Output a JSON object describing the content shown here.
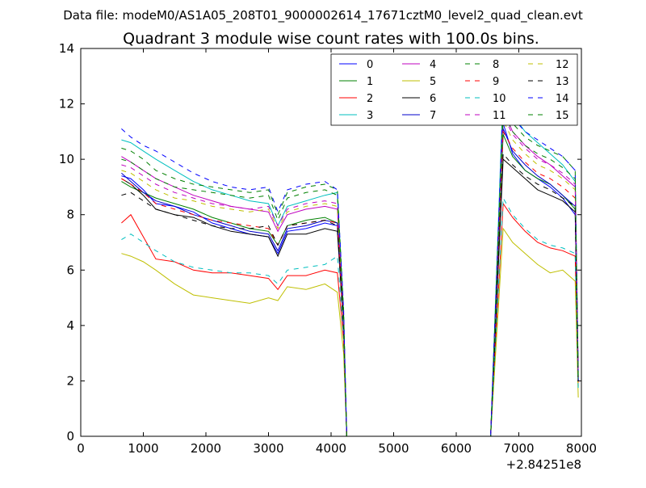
{
  "figure": {
    "suptitle": "Data file: modeM0/AS1A05_208T01_9000002614_17671cztM0_level2_quad_clean.evt"
  },
  "chart_data": {
    "type": "line",
    "title": "Quadrant 3 module wise count rates with 100.0s bins.",
    "xlabel": "",
    "ylabel": "",
    "xlim": [
      0,
      8000
    ],
    "ylim": [
      0,
      14
    ],
    "x_offset_label": "+2.84251e8",
    "x_ticks": [
      0,
      1000,
      2000,
      3000,
      4000,
      5000,
      6000,
      7000,
      8000
    ],
    "y_ticks": [
      0,
      2,
      4,
      6,
      8,
      10,
      12,
      14
    ],
    "grid": false,
    "legend_position": "top-right",
    "legend_columns": 4,
    "gap_interval": [
      4300,
      6550
    ],
    "series": [
      {
        "name": "0",
        "color": "#0000ff",
        "dashed": false,
        "x": [
          650,
          800,
          1000,
          1200,
          1500,
          1800,
          2100,
          2400,
          2700,
          3000,
          3150,
          3300,
          3600,
          3900,
          4100,
          4200,
          4250,
          6550,
          6750,
          6900,
          7100,
          7300,
          7500,
          7700,
          7900,
          7950
        ],
        "y": [
          9.4,
          9.3,
          8.9,
          8.4,
          8.3,
          8.1,
          7.7,
          7.5,
          7.3,
          7.2,
          6.6,
          7.4,
          7.5,
          7.7,
          7.6,
          4.0,
          0.0,
          0.0,
          11.3,
          10.2,
          9.6,
          9.3,
          9.0,
          8.6,
          8.0,
          2.0
        ]
      },
      {
        "name": "1",
        "color": "#008000",
        "dashed": false,
        "x": [
          650,
          800,
          1000,
          1200,
          1500,
          1800,
          2100,
          2400,
          2700,
          3000,
          3150,
          3300,
          3600,
          3900,
          4100,
          4200,
          4250,
          6550,
          6750,
          6900,
          7100,
          7300,
          7500,
          7700,
          7900,
          7950
        ],
        "y": [
          9.2,
          9.0,
          8.8,
          8.6,
          8.4,
          8.2,
          7.9,
          7.7,
          7.5,
          7.4,
          6.9,
          7.6,
          7.8,
          7.9,
          7.7,
          4.0,
          0.0,
          0.0,
          10.9,
          10.1,
          9.6,
          9.3,
          9.1,
          8.7,
          8.2,
          2.0
        ]
      },
      {
        "name": "2",
        "color": "#ff0000",
        "dashed": false,
        "x": [
          650,
          800,
          1000,
          1200,
          1500,
          1800,
          2100,
          2400,
          2700,
          3000,
          3150,
          3300,
          3600,
          3900,
          4100,
          4200,
          4250,
          6550,
          6750,
          6900,
          7100,
          7300,
          7500,
          7700,
          7900,
          7950
        ],
        "y": [
          7.7,
          8.0,
          7.2,
          6.4,
          6.3,
          6.0,
          5.9,
          5.9,
          5.8,
          5.7,
          5.3,
          5.8,
          5.8,
          6.0,
          5.9,
          3.5,
          0.0,
          0.0,
          8.4,
          7.9,
          7.4,
          7.0,
          6.8,
          6.7,
          6.5,
          1.8
        ]
      },
      {
        "name": "3",
        "color": "#00bfbf",
        "dashed": false,
        "x": [
          650,
          800,
          1000,
          1200,
          1500,
          1800,
          2100,
          2400,
          2700,
          3000,
          3150,
          3300,
          3600,
          3900,
          4100,
          4200,
          4250,
          6550,
          6750,
          6900,
          7100,
          7300,
          7500,
          7700,
          7900,
          7950
        ],
        "y": [
          10.7,
          10.6,
          10.3,
          10.0,
          9.6,
          9.2,
          8.9,
          8.7,
          8.5,
          8.4,
          7.6,
          8.3,
          8.5,
          8.7,
          8.8,
          4.5,
          0.0,
          0.0,
          12.5,
          11.6,
          11.0,
          10.6,
          10.2,
          9.8,
          9.2,
          2.2
        ]
      },
      {
        "name": "4",
        "color": "#bf00bf",
        "dashed": false,
        "x": [
          650,
          800,
          1000,
          1200,
          1500,
          1800,
          2100,
          2400,
          2700,
          3000,
          3150,
          3300,
          3600,
          3900,
          4100,
          4200,
          4250,
          6550,
          6750,
          6900,
          7100,
          7300,
          7500,
          7700,
          7900,
          7950
        ],
        "y": [
          10.1,
          9.9,
          9.6,
          9.3,
          9.0,
          8.7,
          8.5,
          8.3,
          8.2,
          8.1,
          7.4,
          8.0,
          8.2,
          8.3,
          8.2,
          4.2,
          0.0,
          0.0,
          11.8,
          11.0,
          10.5,
          10.1,
          9.8,
          9.4,
          9.0,
          2.1
        ]
      },
      {
        "name": "5",
        "color": "#bfbf00",
        "dashed": false,
        "x": [
          650,
          800,
          1000,
          1200,
          1500,
          1800,
          2100,
          2400,
          2700,
          3000,
          3150,
          3300,
          3600,
          3900,
          4100,
          4200,
          4250,
          6550,
          6750,
          6900,
          7100,
          7300,
          7500,
          7700,
          7900,
          7950
        ],
        "y": [
          6.6,
          6.5,
          6.3,
          6.0,
          5.5,
          5.1,
          5.0,
          4.9,
          4.8,
          5.0,
          4.9,
          5.4,
          5.3,
          5.5,
          5.2,
          3.0,
          0.0,
          0.0,
          7.5,
          7.0,
          6.6,
          6.2,
          5.9,
          6.0,
          5.6,
          1.4
        ]
      },
      {
        "name": "6",
        "color": "#000000",
        "dashed": false,
        "x": [
          650,
          800,
          1000,
          1200,
          1500,
          1800,
          2100,
          2400,
          2700,
          3000,
          3150,
          3300,
          3600,
          3900,
          4100,
          4200,
          4250,
          6550,
          6750,
          6900,
          7100,
          7300,
          7500,
          7700,
          7900,
          7950
        ],
        "y": [
          9.3,
          9.1,
          8.7,
          8.2,
          8.0,
          7.9,
          7.6,
          7.4,
          7.3,
          7.2,
          6.5,
          7.3,
          7.3,
          7.5,
          7.4,
          3.9,
          0.0,
          0.0,
          10.0,
          9.7,
          9.3,
          8.9,
          8.7,
          8.5,
          8.1,
          2.0
        ]
      },
      {
        "name": "7",
        "color": "#0000cc",
        "dashed": false,
        "x": [
          650,
          800,
          1000,
          1200,
          1500,
          1800,
          2100,
          2400,
          2700,
          3000,
          3150,
          3300,
          3600,
          3900,
          4100,
          4200,
          4250,
          6550,
          6750,
          6900,
          7100,
          7300,
          7500,
          7700,
          7900,
          7950
        ],
        "y": [
          9.5,
          9.2,
          8.8,
          8.5,
          8.3,
          8.0,
          7.8,
          7.6,
          7.4,
          7.3,
          6.7,
          7.5,
          7.6,
          7.8,
          7.7,
          4.0,
          0.0,
          0.0,
          11.1,
          10.3,
          9.8,
          9.4,
          9.1,
          8.7,
          8.3,
          2.0
        ]
      },
      {
        "name": "8",
        "color": "#008000",
        "dashed": true,
        "x": [
          650,
          800,
          1000,
          1200,
          1500,
          1800,
          2100,
          2400,
          2700,
          3000,
          3150,
          3300,
          3600,
          3900,
          4100,
          4200,
          4250,
          6550,
          6750,
          6900,
          7100,
          7300,
          7500,
          7700,
          7900,
          7950
        ],
        "y": [
          10.4,
          10.3,
          10.0,
          9.6,
          9.3,
          9.1,
          9.0,
          8.9,
          8.8,
          8.9,
          8.0,
          8.8,
          9.0,
          9.1,
          8.9,
          4.6,
          0.0,
          0.0,
          12.0,
          11.3,
          10.8,
          10.5,
          10.3,
          10.1,
          9.6,
          2.3
        ]
      },
      {
        "name": "9",
        "color": "#ff0000",
        "dashed": true,
        "x": [
          650,
          800,
          1000,
          1200,
          1500,
          1800,
          2100,
          2400,
          2700,
          3000,
          3150,
          3300,
          3600,
          3900,
          4100,
          4200,
          4250,
          6550,
          6750,
          6900,
          7100,
          7300,
          7500,
          7700,
          7900,
          7950
        ],
        "y": [
          9.3,
          9.1,
          8.8,
          8.4,
          8.2,
          8.0,
          7.8,
          7.7,
          7.6,
          7.5,
          6.9,
          7.6,
          7.7,
          7.8,
          7.7,
          4.0,
          0.0,
          0.0,
          11.0,
          10.4,
          9.9,
          9.5,
          9.3,
          9.0,
          8.6,
          2.1
        ]
      },
      {
        "name": "10",
        "color": "#00bfbf",
        "dashed": true,
        "x": [
          650,
          800,
          1000,
          1200,
          1500,
          1800,
          2100,
          2400,
          2700,
          3000,
          3150,
          3300,
          3600,
          3900,
          4100,
          4200,
          4250,
          6550,
          6750,
          6900,
          7100,
          7300,
          7500,
          7700,
          7900,
          7950
        ],
        "y": [
          7.1,
          7.3,
          7.0,
          6.7,
          6.3,
          6.1,
          6.0,
          5.9,
          5.9,
          5.8,
          5.5,
          6.0,
          6.1,
          6.2,
          6.5,
          3.6,
          0.0,
          0.0,
          8.6,
          8.0,
          7.5,
          7.1,
          6.9,
          6.8,
          6.6,
          1.7
        ]
      },
      {
        "name": "11",
        "color": "#bf00bf",
        "dashed": true,
        "x": [
          650,
          800,
          1000,
          1200,
          1500,
          1800,
          2100,
          2400,
          2700,
          3000,
          3150,
          3300,
          3600,
          3900,
          4100,
          4200,
          4250,
          6550,
          6750,
          6900,
          7100,
          7300,
          7500,
          7700,
          7900,
          7950
        ],
        "y": [
          9.8,
          9.7,
          9.4,
          9.1,
          8.8,
          8.6,
          8.4,
          8.3,
          8.2,
          8.3,
          7.6,
          8.2,
          8.4,
          8.5,
          8.4,
          4.3,
          0.0,
          0.0,
          11.6,
          10.9,
          10.4,
          10.0,
          9.8,
          9.5,
          9.1,
          2.2
        ]
      },
      {
        "name": "12",
        "color": "#bfbf00",
        "dashed": true,
        "x": [
          650,
          800,
          1000,
          1200,
          1500,
          1800,
          2100,
          2400,
          2700,
          3000,
          3150,
          3300,
          3600,
          3900,
          4100,
          4200,
          4250,
          6550,
          6750,
          6900,
          7100,
          7300,
          7500,
          7700,
          7900,
          7950
        ],
        "y": [
          9.6,
          9.5,
          9.2,
          8.9,
          8.6,
          8.5,
          8.3,
          8.2,
          8.1,
          8.2,
          7.5,
          8.1,
          8.3,
          8.4,
          8.3,
          4.2,
          0.0,
          0.0,
          11.4,
          10.7,
          10.2,
          9.8,
          9.6,
          9.3,
          8.9,
          2.1
        ]
      },
      {
        "name": "13",
        "color": "#000000",
        "dashed": true,
        "x": [
          650,
          800,
          1000,
          1200,
          1500,
          1800,
          2100,
          2400,
          2700,
          3000,
          3150,
          3300,
          3600,
          3900,
          4100,
          4200,
          4250,
          6550,
          6750,
          6900,
          7100,
          7300,
          7500,
          7700,
          7900,
          7950
        ],
        "y": [
          8.7,
          8.8,
          8.5,
          8.2,
          8.0,
          7.8,
          7.6,
          7.5,
          7.5,
          7.6,
          6.9,
          7.6,
          7.7,
          7.8,
          7.6,
          3.9,
          0.0,
          0.0,
          10.2,
          9.8,
          9.4,
          9.1,
          8.9,
          8.6,
          8.3,
          2.0
        ]
      },
      {
        "name": "14",
        "color": "#0000ff",
        "dashed": true,
        "x": [
          650,
          800,
          1000,
          1200,
          1500,
          1800,
          2100,
          2400,
          2700,
          3000,
          3150,
          3300,
          3600,
          3900,
          4100,
          4200,
          4250,
          6550,
          6750,
          6900,
          7100,
          7300,
          7500,
          7700,
          7900,
          7950
        ],
        "y": [
          11.1,
          10.8,
          10.5,
          10.3,
          9.9,
          9.5,
          9.2,
          9.0,
          8.9,
          9.0,
          8.1,
          8.9,
          9.1,
          9.2,
          8.9,
          4.6,
          0.0,
          0.0,
          12.2,
          11.5,
          11.0,
          10.7,
          10.4,
          10.1,
          9.6,
          2.3
        ]
      },
      {
        "name": "15",
        "color": "#008000",
        "dashed": true,
        "x": [
          650,
          800,
          1000,
          1200,
          1500,
          1800,
          2100,
          2400,
          2700,
          3000,
          3150,
          3300,
          3600,
          3900,
          4100,
          4200,
          4250,
          6550,
          6750,
          6900,
          7100,
          7300,
          7500,
          7700,
          7900,
          7950
        ],
        "y": [
          10.0,
          9.9,
          9.6,
          9.3,
          9.0,
          8.9,
          8.8,
          8.7,
          8.6,
          8.7,
          7.8,
          8.6,
          8.8,
          8.9,
          8.7,
          4.4,
          0.0,
          0.0,
          11.7,
          11.0,
          10.5,
          10.2,
          10.0,
          9.7,
          9.3,
          2.2
        ]
      }
    ]
  }
}
